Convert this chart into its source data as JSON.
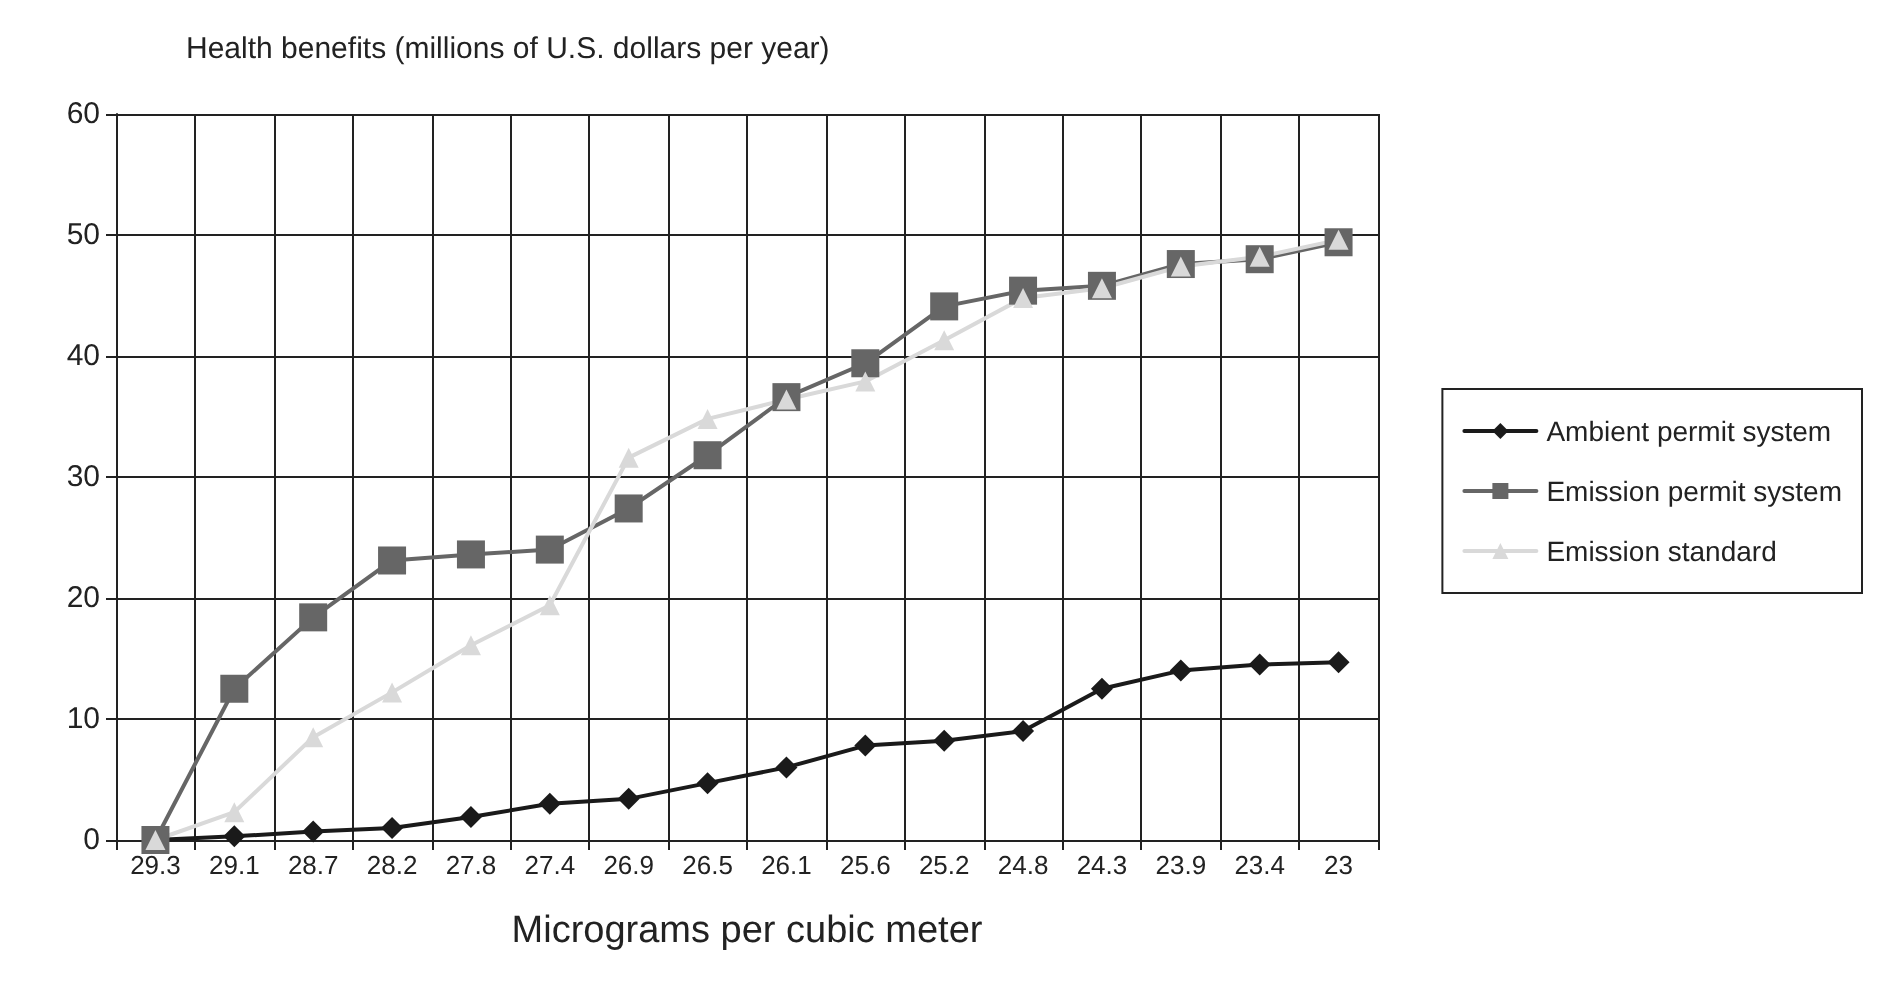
{
  "chart_data": {
    "type": "line",
    "title": "Health benefits (millions of U.S. dollars per year)",
    "xlabel": "Micrograms per cubic meter",
    "categories": [
      "29.3",
      "29.1",
      "28.7",
      "28.2",
      "27.8",
      "27.4",
      "26.9",
      "26.5",
      "26.1",
      "25.6",
      "25.2",
      "24.8",
      "24.3",
      "23.9",
      "23.4",
      "23"
    ],
    "series": [
      {
        "name": "Ambient permit system",
        "color": "#1a1a1a",
        "marker": "diamond",
        "values": [
          0,
          0.3,
          0.7,
          1.0,
          1.9,
          3.0,
          3.4,
          4.7,
          6.0,
          7.8,
          8.2,
          9.0,
          12.5,
          14.0,
          14.5,
          14.7
        ]
      },
      {
        "name": "Emission permit system",
        "color": "#666666",
        "marker": "square",
        "values": [
          0,
          12.5,
          18.4,
          23.1,
          23.6,
          24.0,
          27.4,
          31.8,
          36.6,
          39.4,
          44.1,
          45.4,
          45.8,
          47.6,
          48.0,
          49.4
        ]
      },
      {
        "name": "Emission standard",
        "color": "#d9d9d9",
        "marker": "triangle",
        "values": [
          0,
          2.3,
          8.5,
          12.2,
          16.1,
          19.4,
          31.6,
          34.8,
          36.4,
          37.9,
          41.3,
          44.8,
          45.6,
          47.4,
          48.2,
          49.6
        ]
      }
    ],
    "ylim": [
      0,
      60
    ],
    "yticks": [
      0,
      10,
      20,
      30,
      40,
      50,
      60
    ],
    "grid": true,
    "legend": "right",
    "line_style": "solid"
  }
}
